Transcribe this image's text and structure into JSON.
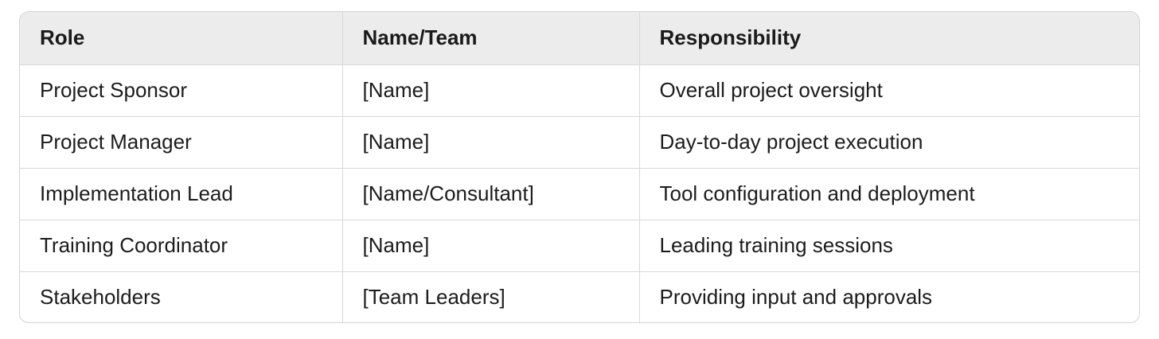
{
  "table": {
    "headers": [
      "Role",
      "Name/Team",
      "Responsibility"
    ],
    "rows": [
      [
        "Project Sponsor",
        "[Name]",
        "Overall project oversight"
      ],
      [
        "Project Manager",
        "[Name]",
        "Day-to-day project execution"
      ],
      [
        "Implementation Lead",
        "[Name/Consultant]",
        "Tool configuration and deployment"
      ],
      [
        "Training Coordinator",
        "[Name]",
        "Leading training sessions"
      ],
      [
        "Stakeholders",
        "[Team Leaders]",
        "Providing input and approvals"
      ]
    ]
  }
}
